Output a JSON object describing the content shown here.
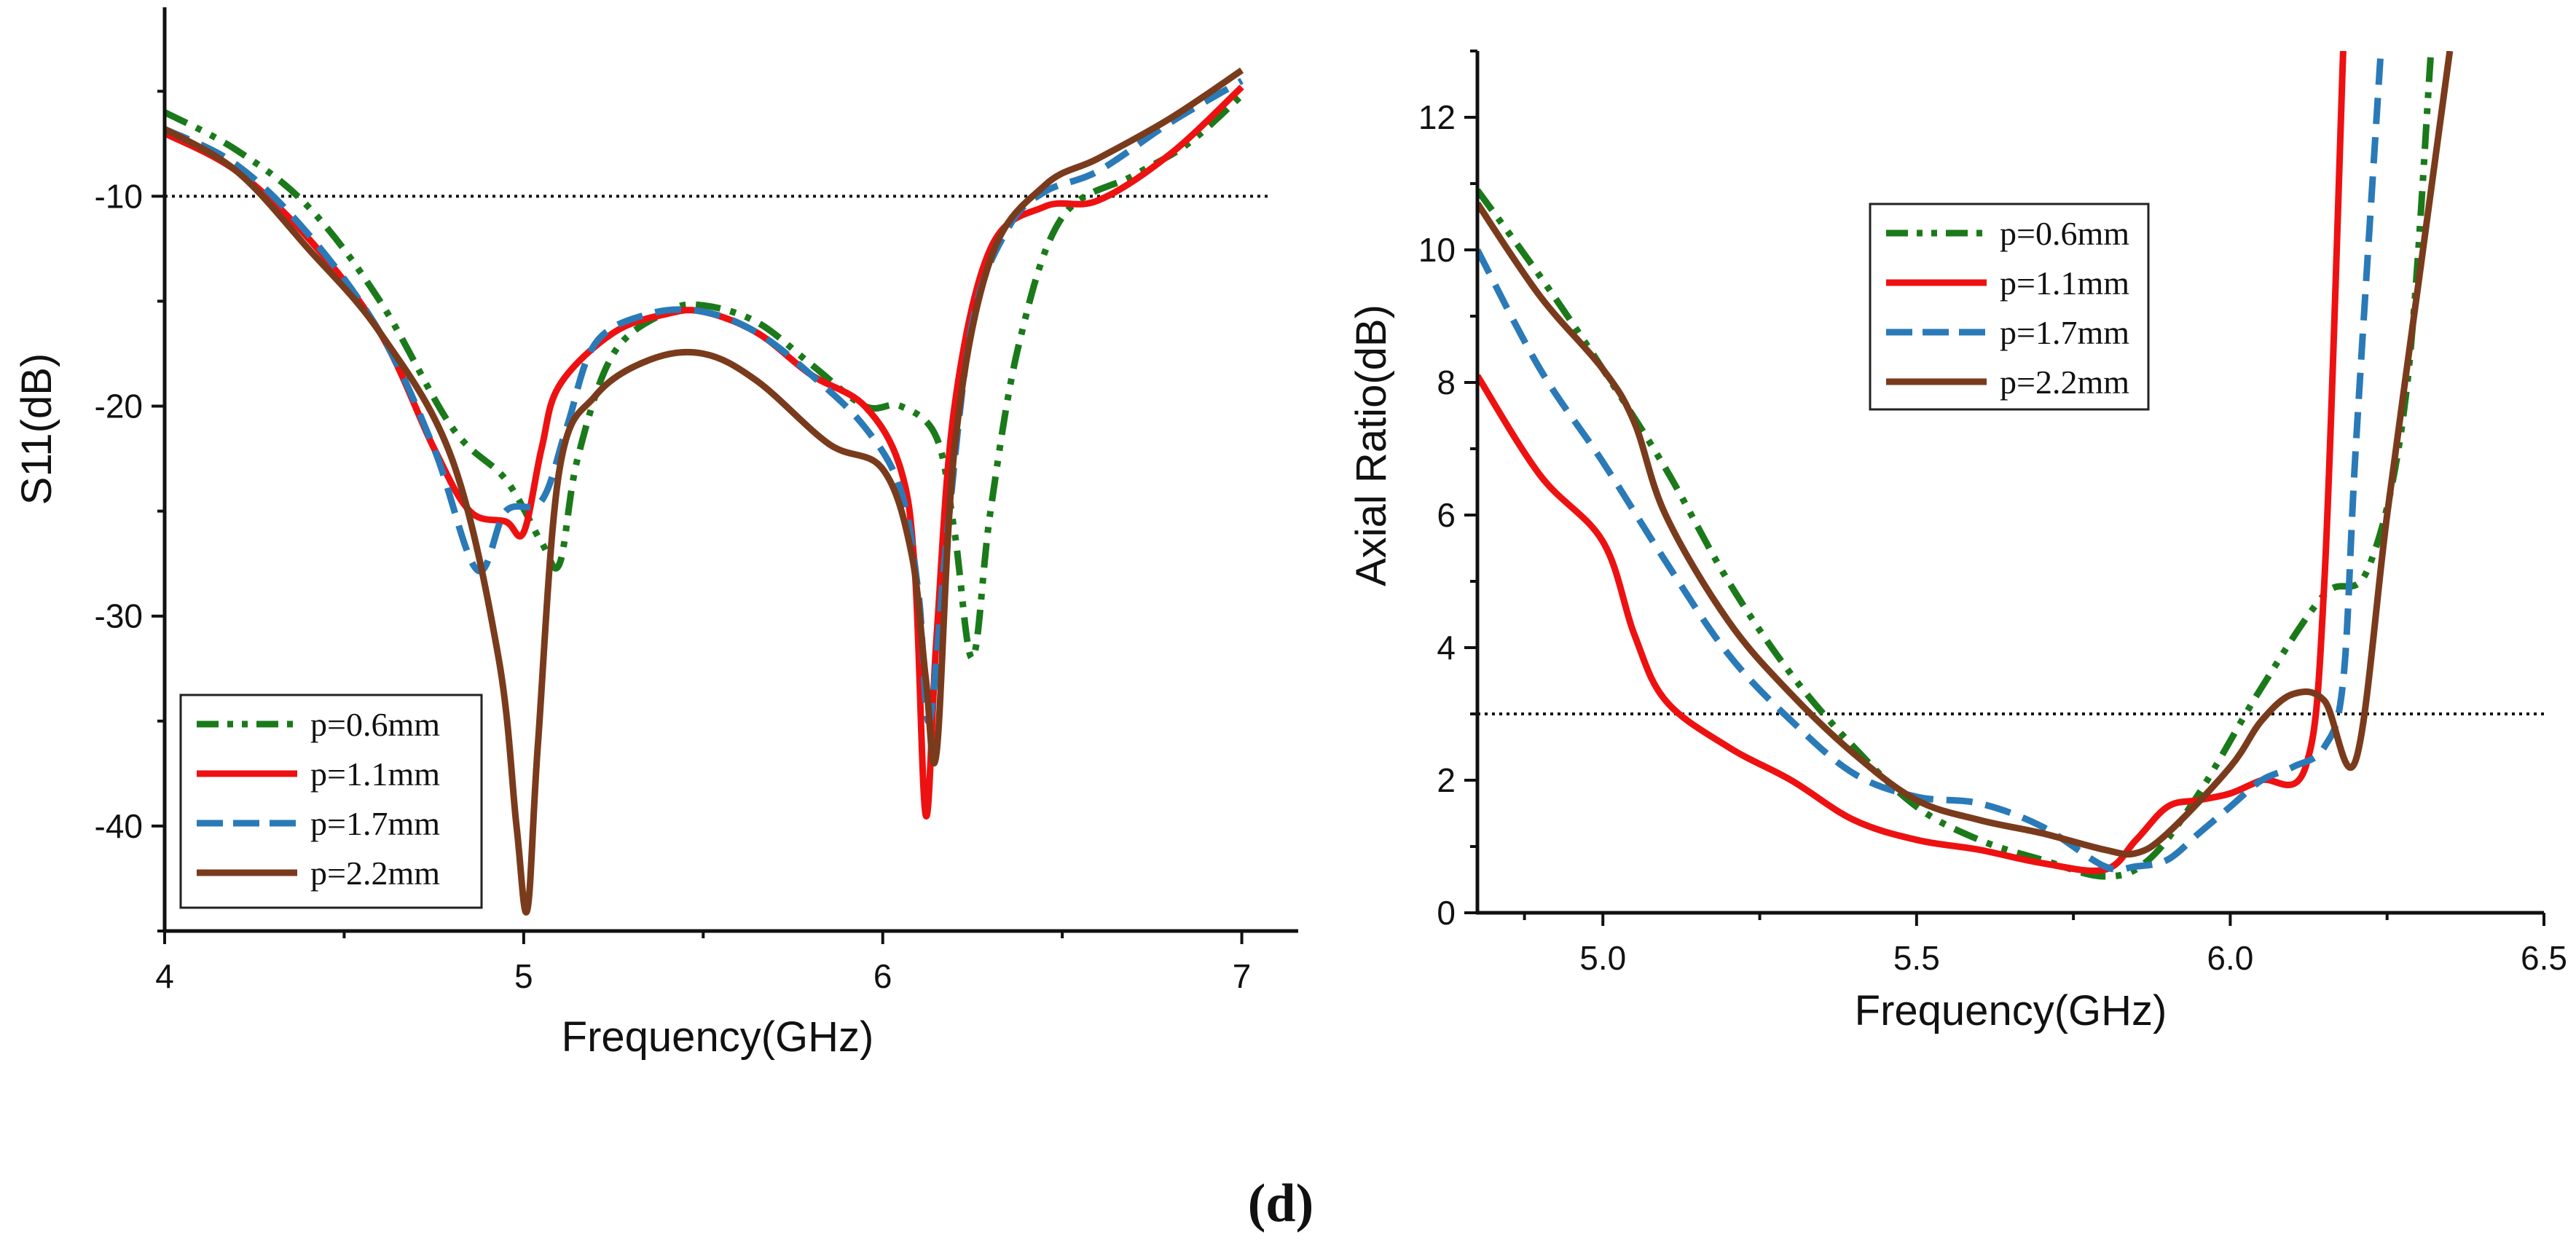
{
  "figure_label": "(d)",
  "legend": {
    "entries": [
      "p=0.6mm",
      "p=1.1mm",
      "p=1.7mm",
      "p=2.2mm"
    ],
    "colors": [
      "#1a7a1a",
      "#ee1111",
      "#2a7ab8",
      "#7a3b1c"
    ]
  },
  "chart_data": [
    {
      "type": "line",
      "title": "",
      "xlabel": "Frequency(GHz)",
      "ylabel": "S11(dB)",
      "xlim": [
        4,
        7.08
      ],
      "ylim": [
        -45,
        -1
      ],
      "xticks": [
        4,
        5,
        6,
        7
      ],
      "yticks": [
        -10,
        -20,
        -30,
        -40
      ],
      "grid": false,
      "legend_position": "bottom-left",
      "reference_line": {
        "y": -10,
        "style": "dotted"
      },
      "series": [
        {
          "name": "p=0.6mm",
          "style": "dash-dot-dot",
          "x": [
            4.0,
            4.2,
            4.4,
            4.6,
            4.8,
            4.95,
            5.05,
            5.1,
            5.15,
            5.25,
            5.4,
            5.5,
            5.65,
            5.8,
            5.95,
            6.05,
            6.15,
            6.2,
            6.25,
            6.3,
            6.38,
            6.5,
            6.7,
            6.85,
            7.0
          ],
          "y": [
            -6,
            -7.8,
            -10.5,
            -15,
            -21,
            -23.5,
            -26.5,
            -27.5,
            -22.5,
            -17.5,
            -15.5,
            -15.2,
            -16,
            -18,
            -20,
            -20,
            -21.5,
            -26,
            -32,
            -25,
            -17,
            -11,
            -9,
            -7.5,
            -5.2
          ]
        },
        {
          "name": "p=1.1mm",
          "style": "solid",
          "x": [
            4.0,
            4.2,
            4.4,
            4.6,
            4.75,
            4.85,
            4.95,
            5.0,
            5.05,
            5.1,
            5.25,
            5.4,
            5.5,
            5.65,
            5.8,
            5.95,
            6.05,
            6.09,
            6.12,
            6.15,
            6.2,
            6.3,
            6.45,
            6.6,
            6.8,
            7.0
          ],
          "y": [
            -7,
            -8.8,
            -12,
            -16.5,
            -22,
            -25,
            -25.5,
            -26,
            -22,
            -19,
            -16.5,
            -15.6,
            -15.5,
            -16.5,
            -18.5,
            -20,
            -23,
            -28,
            -39.5,
            -31,
            -20,
            -12.5,
            -10.5,
            -10.2,
            -8,
            -4.8
          ]
        },
        {
          "name": "p=1.7mm",
          "style": "dashed",
          "x": [
            4.0,
            4.2,
            4.4,
            4.6,
            4.75,
            4.87,
            4.95,
            5.05,
            5.12,
            5.2,
            5.35,
            5.5,
            5.65,
            5.8,
            5.95,
            6.05,
            6.1,
            6.13,
            6.18,
            6.25,
            6.35,
            6.45,
            6.6,
            6.8,
            7.0
          ],
          "y": [
            -6.8,
            -8.5,
            -11.8,
            -16.5,
            -22,
            -27.8,
            -25,
            -24.5,
            -21,
            -17,
            -15.6,
            -15.5,
            -16.5,
            -18.5,
            -21,
            -24,
            -29,
            -35,
            -26,
            -16,
            -11.5,
            -9.8,
            -8.8,
            -6.5,
            -4.5
          ]
        },
        {
          "name": "p=2.2mm",
          "style": "solid",
          "x": [
            4.0,
            4.2,
            4.4,
            4.6,
            4.8,
            4.93,
            4.98,
            5.01,
            5.04,
            5.1,
            5.2,
            5.35,
            5.5,
            5.65,
            5.85,
            6.0,
            6.08,
            6.12,
            6.15,
            6.2,
            6.3,
            6.45,
            6.6,
            6.8,
            7.0
          ],
          "y": [
            -6.8,
            -8.8,
            -12.5,
            -16.5,
            -22.5,
            -32,
            -40,
            -44,
            -36,
            -23,
            -19.5,
            -17.8,
            -17.5,
            -18.8,
            -21.8,
            -23,
            -27,
            -33,
            -36.5,
            -22,
            -13,
            -9.5,
            -8.2,
            -6.3,
            -4
          ]
        }
      ]
    },
    {
      "type": "line",
      "title": "",
      "xlabel": "Frequency(GHz)",
      "ylabel": "Axial Ratio(dB)",
      "xlim": [
        4.8,
        6.5
      ],
      "ylim": [
        0,
        13
      ],
      "xticks": [
        5.0,
        5.5,
        6.0,
        6.5
      ],
      "xtick_labels": [
        "5.0",
        "5.5",
        "6.0",
        "6.5"
      ],
      "yticks": [
        0,
        2,
        4,
        6,
        8,
        10,
        12
      ],
      "grid": false,
      "legend_position": "top-center",
      "reference_line": {
        "y": 3,
        "style": "dotted"
      },
      "series": [
        {
          "name": "p=0.6mm",
          "style": "dash-dot-dot",
          "x": [
            4.8,
            4.9,
            5.0,
            5.1,
            5.2,
            5.3,
            5.4,
            5.5,
            5.6,
            5.7,
            5.8,
            5.87,
            5.95,
            6.05,
            6.15,
            6.22,
            6.28,
            6.32
          ],
          "y": [
            10.9,
            9.6,
            8.2,
            6.7,
            5.0,
            3.6,
            2.5,
            1.6,
            1.1,
            0.8,
            0.55,
            0.8,
            1.8,
            3.4,
            4.8,
            5.2,
            7.8,
            13
          ]
        },
        {
          "name": "p=1.1mm",
          "style": "solid",
          "x": [
            4.8,
            4.9,
            5.0,
            5.05,
            5.1,
            5.2,
            5.3,
            5.4,
            5.5,
            5.6,
            5.7,
            5.8,
            5.85,
            5.9,
            5.95,
            6.0,
            6.05,
            6.12,
            6.15,
            6.18
          ],
          "y": [
            8.1,
            6.6,
            5.6,
            4.2,
            3.2,
            2.5,
            2.0,
            1.4,
            1.1,
            0.95,
            0.75,
            0.65,
            1.1,
            1.6,
            1.7,
            1.8,
            2.0,
            2.2,
            5.0,
            13
          ]
        },
        {
          "name": "p=1.7mm",
          "style": "dashed",
          "x": [
            4.8,
            4.9,
            5.0,
            5.1,
            5.2,
            5.3,
            5.4,
            5.5,
            5.6,
            5.7,
            5.8,
            5.85,
            5.9,
            5.95,
            6.0,
            6.05,
            6.1,
            6.15,
            6.18,
            6.2,
            6.24
          ],
          "y": [
            10.0,
            8.2,
            6.8,
            5.3,
            3.9,
            2.9,
            2.1,
            1.75,
            1.65,
            1.3,
            0.7,
            0.7,
            0.8,
            1.2,
            1.6,
            2.0,
            2.2,
            2.5,
            3.5,
            7.0,
            13
          ]
        },
        {
          "name": "p=2.2mm",
          "style": "solid",
          "x": [
            4.8,
            4.9,
            5.0,
            5.05,
            5.1,
            5.2,
            5.3,
            5.4,
            5.5,
            5.6,
            5.7,
            5.8,
            5.85,
            5.9,
            6.0,
            6.05,
            6.1,
            6.15,
            6.2,
            6.25,
            6.3,
            6.35
          ],
          "y": [
            10.7,
            9.3,
            8.2,
            7.4,
            6.0,
            4.4,
            3.3,
            2.4,
            1.7,
            1.4,
            1.2,
            0.95,
            0.9,
            1.2,
            2.2,
            2.9,
            3.3,
            3.2,
            2.3,
            6.0,
            9.5,
            13
          ]
        }
      ]
    }
  ]
}
